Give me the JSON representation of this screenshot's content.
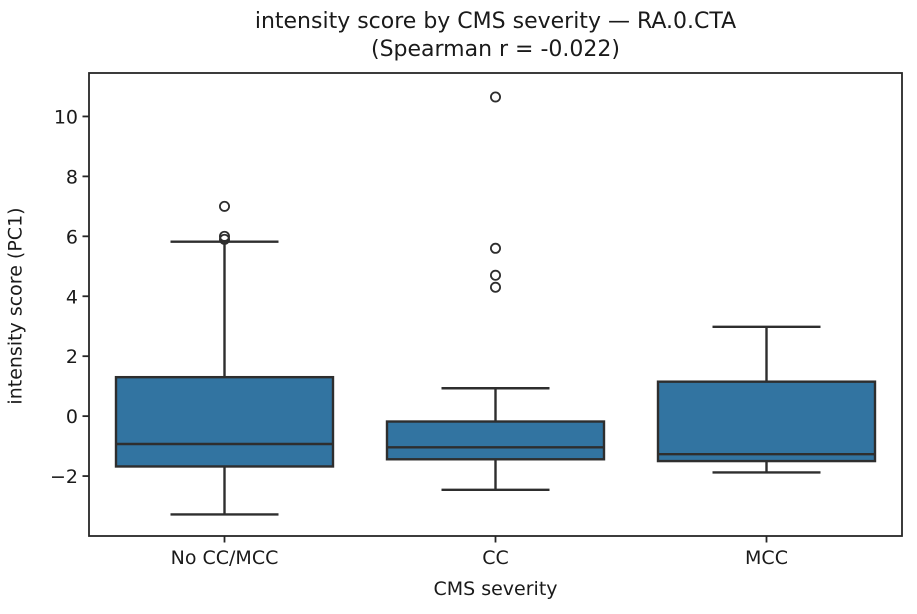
{
  "figure": {
    "title_line1": "intensity score by CMS severity — RA.0.CTA",
    "title_line2": "(Spearman r = -0.022)",
    "xlabel": "CMS severity",
    "ylabel": "intensity score (PC1)"
  },
  "chart_data": {
    "type": "box",
    "title": "intensity score by CMS severity — RA.0.CTA (Spearman r = -0.022)",
    "xlabel": "CMS severity",
    "ylabel": "intensity score (PC1)",
    "categories": [
      "No CC/MCC",
      "CC",
      "MCC"
    ],
    "ylim": [
      -4.0,
      11.45
    ],
    "yticks": [
      -2,
      0,
      2,
      4,
      6,
      8,
      10
    ],
    "grid": false,
    "legend": false,
    "box_fill": "#3274a1",
    "line_color": "#2e2e2e",
    "axis_color": "#262626",
    "text_color": "#1a1a1a",
    "groups": [
      {
        "label": "No CC/MCC",
        "whisker_low": -3.28,
        "q1": -1.68,
        "median": -0.93,
        "q3": 1.3,
        "whisker_high": 5.82,
        "outliers": [
          5.9,
          6.0,
          7.0
        ]
      },
      {
        "label": "CC",
        "whisker_low": -2.46,
        "q1": -1.44,
        "median": -1.04,
        "q3": -0.18,
        "whisker_high": 0.93,
        "outliers": [
          4.3,
          4.7,
          5.6,
          10.65
        ]
      },
      {
        "label": "MCC",
        "whisker_low": -1.88,
        "q1": -1.5,
        "median": -1.27,
        "q3": 1.15,
        "whisker_high": 2.98,
        "outliers": []
      }
    ]
  }
}
